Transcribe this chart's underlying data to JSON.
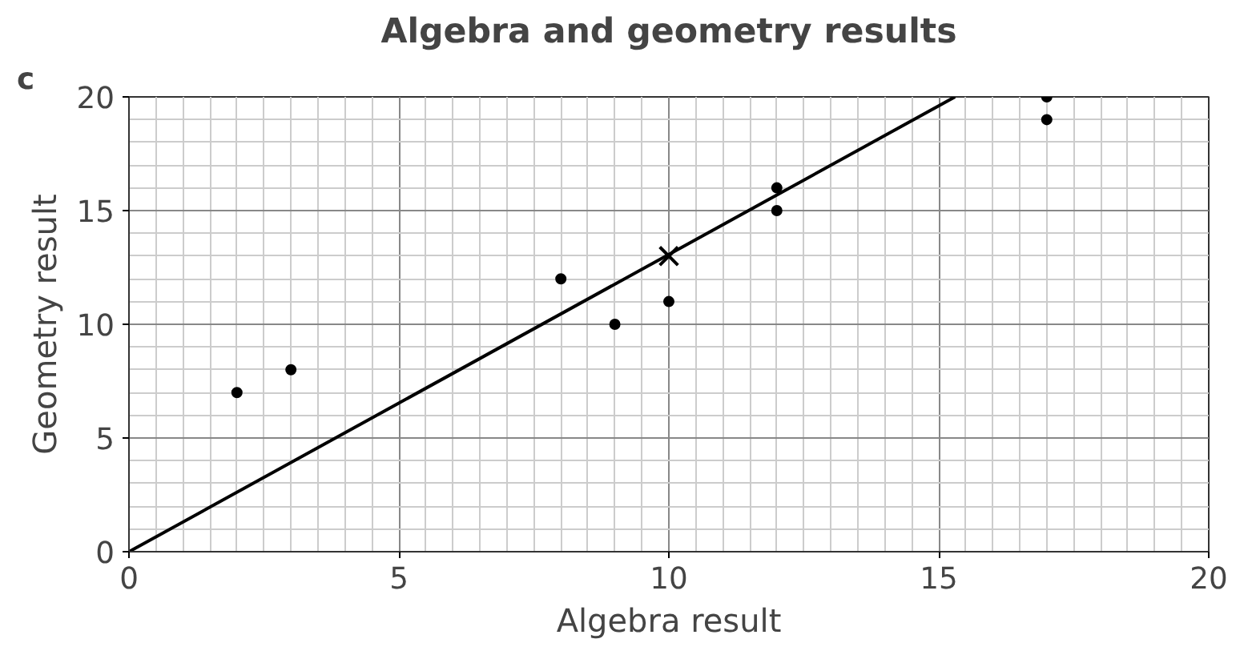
{
  "chart_data": {
    "type": "scatter",
    "title": "Algebra and geometry results",
    "xlabel": "Algebra result",
    "ylabel": "Geometry result",
    "annotations": [
      "c"
    ],
    "xlim": [
      0,
      20
    ],
    "ylim": [
      0,
      20
    ],
    "xticks": [
      0,
      5,
      10,
      15,
      20
    ],
    "yticks": [
      0,
      5,
      10,
      15,
      20
    ],
    "grid": true,
    "marker": "circle",
    "series": [
      {
        "color": "#000000",
        "x": [
          2,
          3,
          8,
          9,
          10,
          12,
          12,
          17,
          17
        ],
        "values": [
          7,
          8,
          12,
          10,
          11,
          16,
          15,
          20,
          19
        ]
      },
      {
        "type": "scatter",
        "color": "#000000",
        "marker": "cross",
        "x": [
          10
        ],
        "values": [
          13
        ]
      },
      {
        "type": "line",
        "color": "#000000",
        "marker": "none",
        "x": [
          0,
          15.3
        ],
        "values": [
          0,
          20
        ]
      }
    ]
  }
}
